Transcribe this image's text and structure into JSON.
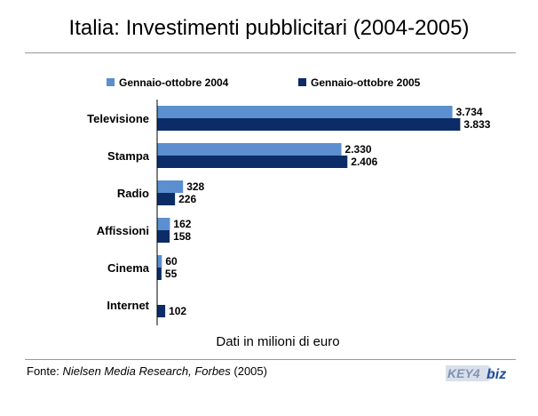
{
  "title": "Italia: Investimenti pubblicitari (2004-2005)",
  "source": {
    "prefix": "Fonte: ",
    "italic": "Nielsen Media Research, Forbes",
    "suffix": " (2005)"
  },
  "logo": {
    "text_left": "KEY4",
    "text_right": "biz"
  },
  "colors": {
    "series_2004": "#5b8fcf",
    "series_2005": "#0b2c66",
    "axis": "#000000",
    "rule": "#999999"
  },
  "chart_data": {
    "type": "bar",
    "orientation": "horizontal",
    "categories": [
      "Televisione",
      "Stampa",
      "Radio",
      "Affissioni",
      "Cinema",
      "Internet"
    ],
    "series": [
      {
        "name": "Gennaio-ottobre 2004",
        "values": [
          3734,
          2330,
          328,
          162,
          60,
          null
        ],
        "labels": [
          "3.734",
          "2.330",
          "328",
          "162",
          "60",
          ""
        ]
      },
      {
        "name": "Gennaio-ottobre 2005",
        "values": [
          3833,
          2406,
          226,
          158,
          55,
          102
        ],
        "labels": [
          "3.833",
          "2.406",
          "226",
          "158",
          "55",
          "102"
        ]
      }
    ],
    "xlim": [
      0,
      4300
    ],
    "xlabel": "Dati in milioni di euro",
    "legend_position": "top",
    "grid": false
  }
}
